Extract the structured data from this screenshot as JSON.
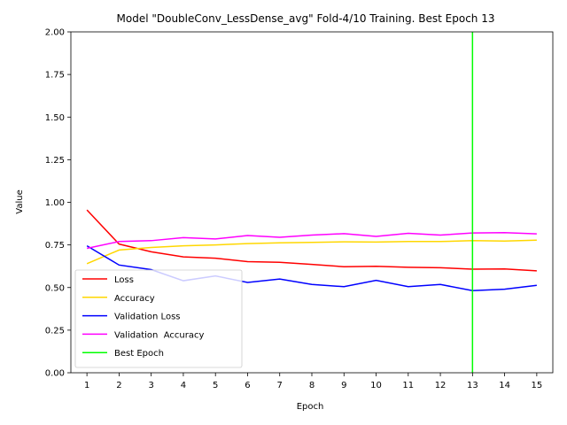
{
  "chart_data": {
    "type": "line",
    "title": "Model \"DoubleConv_LessDense_avg\" Fold-4/10 Training. Best Epoch 13",
    "xlabel": "Epoch",
    "ylabel": "Value",
    "x": [
      1,
      2,
      3,
      4,
      5,
      6,
      7,
      8,
      9,
      10,
      11,
      12,
      13,
      14,
      15
    ],
    "xlim": [
      0.5,
      15.5
    ],
    "ylim": [
      0,
      2
    ],
    "yticks": [
      "0.00",
      "0.25",
      "0.50",
      "0.75",
      "1.00",
      "1.25",
      "1.50",
      "1.75",
      "2.00"
    ],
    "xticks": [
      "1",
      "2",
      "3",
      "4",
      "5",
      "6",
      "7",
      "8",
      "9",
      "10",
      "11",
      "12",
      "13",
      "14",
      "15"
    ],
    "grid": false,
    "legend_position": "lower-left",
    "series": [
      {
        "name": "Loss",
        "color": "#ff0000",
        "values": [
          0.955,
          0.755,
          0.71,
          0.68,
          0.672,
          0.652,
          0.648,
          0.636,
          0.622,
          0.625,
          0.619,
          0.616,
          0.608,
          0.609,
          0.598
        ]
      },
      {
        "name": "Accuracy",
        "color": "#ffd700",
        "values": [
          0.64,
          0.72,
          0.735,
          0.745,
          0.75,
          0.758,
          0.762,
          0.765,
          0.768,
          0.767,
          0.77,
          0.77,
          0.775,
          0.773,
          0.778
        ]
      },
      {
        "name": "Validation Loss",
        "color": "#0000ff",
        "values": [
          0.745,
          0.632,
          0.605,
          0.54,
          0.568,
          0.53,
          0.55,
          0.518,
          0.505,
          0.542,
          0.505,
          0.518,
          0.482,
          0.49,
          0.513
        ]
      },
      {
        "name": "Validation  Accuracy",
        "color": "#ff00ff",
        "values": [
          0.73,
          0.77,
          0.775,
          0.793,
          0.785,
          0.805,
          0.795,
          0.808,
          0.816,
          0.8,
          0.818,
          0.808,
          0.82,
          0.822,
          0.815
        ]
      }
    ],
    "best_epoch": {
      "name": "Best Epoch",
      "x": 13,
      "color": "#00ff00"
    }
  }
}
